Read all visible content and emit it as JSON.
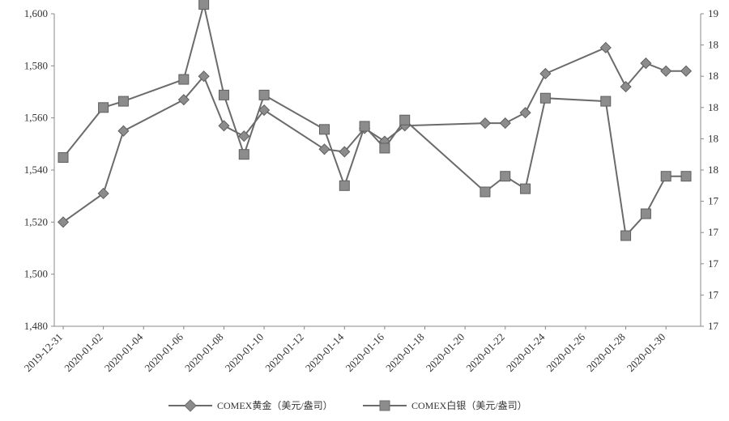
{
  "chart_data": {
    "type": "line",
    "x": [
      "2019-12-31",
      "2020-01-02",
      "2020-01-03",
      "2020-01-06",
      "2020-01-07",
      "2020-01-08",
      "2020-01-09",
      "2020-01-10",
      "2020-01-13",
      "2020-01-14",
      "2020-01-15",
      "2020-01-16",
      "2020-01-17",
      "2020-01-21",
      "2020-01-22",
      "2020-01-23",
      "2020-01-24",
      "2020-01-27",
      "2020-01-28",
      "2020-01-29",
      "2020-01-30",
      "2020-01-31"
    ],
    "x_tick_labels": [
      "2019-12-31",
      "2020-01-02",
      "2020-01-04",
      "2020-01-06",
      "2020-01-08",
      "2020-01-10",
      "2020-01-12",
      "2020-01-14",
      "2020-01-16",
      "2020-01-18",
      "2020-01-20",
      "2020-01-22",
      "2020-01-24",
      "2020-01-26",
      "2020-01-28",
      "2020-01-30"
    ],
    "y_left_ticks": [
      "1,480",
      "1,500",
      "1,520",
      "1,540",
      "1,560",
      "1,580",
      "1,600"
    ],
    "y_left_range": [
      1480,
      1600
    ],
    "y_right_ticks": [
      "17",
      "17",
      "17",
      "17",
      "17",
      "18",
      "18",
      "18",
      "18",
      "18",
      "19"
    ],
    "y_right_range": [
      17,
      19
    ],
    "series": [
      {
        "name": "COMEX黄金（美元/盎司）",
        "axis": "left",
        "marker": "diamond",
        "color": "#6b6b6b",
        "values": [
          1520,
          1531,
          1555,
          1567,
          1576,
          1557,
          1553,
          1563,
          1548,
          1547,
          1556,
          1551,
          1557,
          1558,
          1558,
          1562,
          1577,
          1587,
          1572,
          1581,
          1578,
          1578
        ]
      },
      {
        "name": "COMEX白银（美元/盎司）",
        "axis": "right",
        "marker": "square",
        "color": "#6b6b6b",
        "values": [
          18.08,
          18.4,
          18.44,
          18.58,
          19.06,
          18.48,
          18.1,
          18.48,
          18.26,
          17.9,
          18.28,
          18.14,
          18.32,
          17.86,
          17.96,
          17.88,
          18.46,
          18.44,
          17.58,
          17.72,
          17.96,
          17.96
        ]
      }
    ],
    "grid": false,
    "legend_position": "bottom"
  }
}
